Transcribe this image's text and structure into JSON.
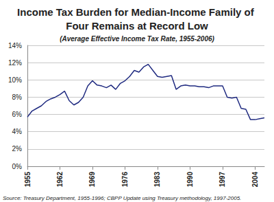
{
  "chart_data": {
    "type": "line",
    "title": "Income Tax Burden for Median-Income Family of Four Remains at Record Low",
    "subtitle": "(Average Effective Income Tax Rate, 1955-2006)",
    "annotations": [
      "Source: Treasury Department, 1955-1996; CBPP Update using Treasury methodology, 1997-2005."
    ],
    "x": [
      1955,
      1956,
      1957,
      1958,
      1959,
      1960,
      1961,
      1962,
      1963,
      1964,
      1965,
      1966,
      1967,
      1968,
      1969,
      1970,
      1971,
      1972,
      1973,
      1974,
      1975,
      1976,
      1977,
      1978,
      1979,
      1980,
      1981,
      1982,
      1983,
      1984,
      1985,
      1986,
      1987,
      1988,
      1989,
      1990,
      1991,
      1992,
      1993,
      1994,
      1995,
      1996,
      1997,
      1998,
      1999,
      2000,
      2001,
      2002,
      2003,
      2004,
      2005,
      2006
    ],
    "values": [
      5.7,
      6.4,
      6.7,
      7.0,
      7.5,
      7.8,
      8.0,
      8.3,
      8.7,
      7.6,
      7.1,
      7.4,
      8.0,
      9.3,
      9.9,
      9.4,
      9.3,
      9.1,
      9.4,
      8.9,
      9.6,
      9.9,
      10.4,
      11.1,
      10.9,
      11.5,
      11.8,
      11.1,
      10.4,
      10.3,
      10.4,
      10.5,
      8.9,
      9.3,
      9.4,
      9.3,
      9.3,
      9.2,
      9.2,
      9.1,
      9.3,
      9.3,
      9.3,
      8.0,
      7.9,
      8.0,
      6.7,
      6.6,
      5.4,
      5.4,
      5.5,
      5.6
    ],
    "color": "#1f2a80",
    "xlim": [
      1955,
      2006
    ],
    "xticks": [
      1955,
      1962,
      1969,
      1976,
      1983,
      1990,
      1997,
      2004
    ],
    "ylim": [
      0,
      14
    ],
    "yticks": [
      {
        "value": 0,
        "label": "0%"
      },
      {
        "value": 2,
        "label": "2%"
      },
      {
        "value": 4,
        "label": "4%"
      },
      {
        "value": 6,
        "label": "6%"
      },
      {
        "value": 8,
        "label": "8%"
      },
      {
        "value": 10,
        "label": "10%"
      },
      {
        "value": 12,
        "label": "12%"
      },
      {
        "value": 14,
        "label": "14%"
      }
    ],
    "grid": true
  }
}
